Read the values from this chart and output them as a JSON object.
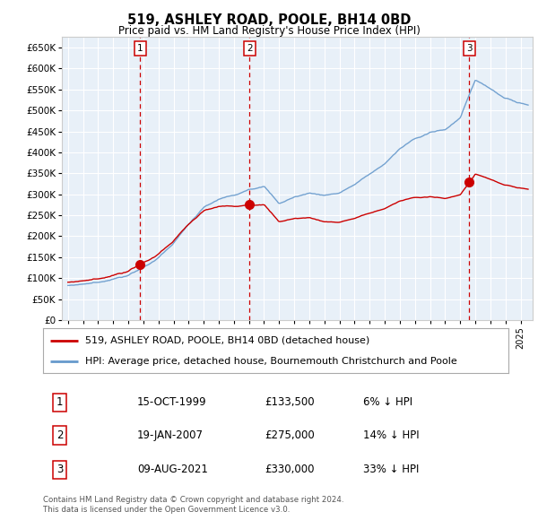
{
  "title": "519, ASHLEY ROAD, POOLE, BH14 0BD",
  "subtitle": "Price paid vs. HM Land Registry's House Price Index (HPI)",
  "ylim": [
    0,
    675000
  ],
  "yticks": [
    0,
    50000,
    100000,
    150000,
    200000,
    250000,
    300000,
    350000,
    400000,
    450000,
    500000,
    550000,
    600000,
    650000
  ],
  "sales": [
    {
      "date_num": 1999.79,
      "price": 133500,
      "label": "1"
    },
    {
      "date_num": 2007.05,
      "price": 275000,
      "label": "2"
    },
    {
      "date_num": 2021.6,
      "price": 330000,
      "label": "3"
    }
  ],
  "sales_info": [
    {
      "num": "1",
      "date": "15-OCT-1999",
      "price": "£133,500",
      "hpi": "6% ↓ HPI"
    },
    {
      "num": "2",
      "date": "19-JAN-2007",
      "price": "£275,000",
      "hpi": "14% ↓ HPI"
    },
    {
      "num": "3",
      "date": "09-AUG-2021",
      "price": "£330,000",
      "hpi": "33% ↓ HPI"
    }
  ],
  "legend_line1": "519, ASHLEY ROAD, POOLE, BH14 0BD (detached house)",
  "legend_line2": "HPI: Average price, detached house, Bournemouth Christchurch and Poole",
  "footer1": "Contains HM Land Registry data © Crown copyright and database right 2024.",
  "footer2": "This data is licensed under the Open Government Licence v3.0.",
  "sale_color": "#cc0000",
  "hpi_color": "#6699cc",
  "grid_color": "#cccccc",
  "plot_bg": "#e8f0f8",
  "bg_color": "#ffffff"
}
